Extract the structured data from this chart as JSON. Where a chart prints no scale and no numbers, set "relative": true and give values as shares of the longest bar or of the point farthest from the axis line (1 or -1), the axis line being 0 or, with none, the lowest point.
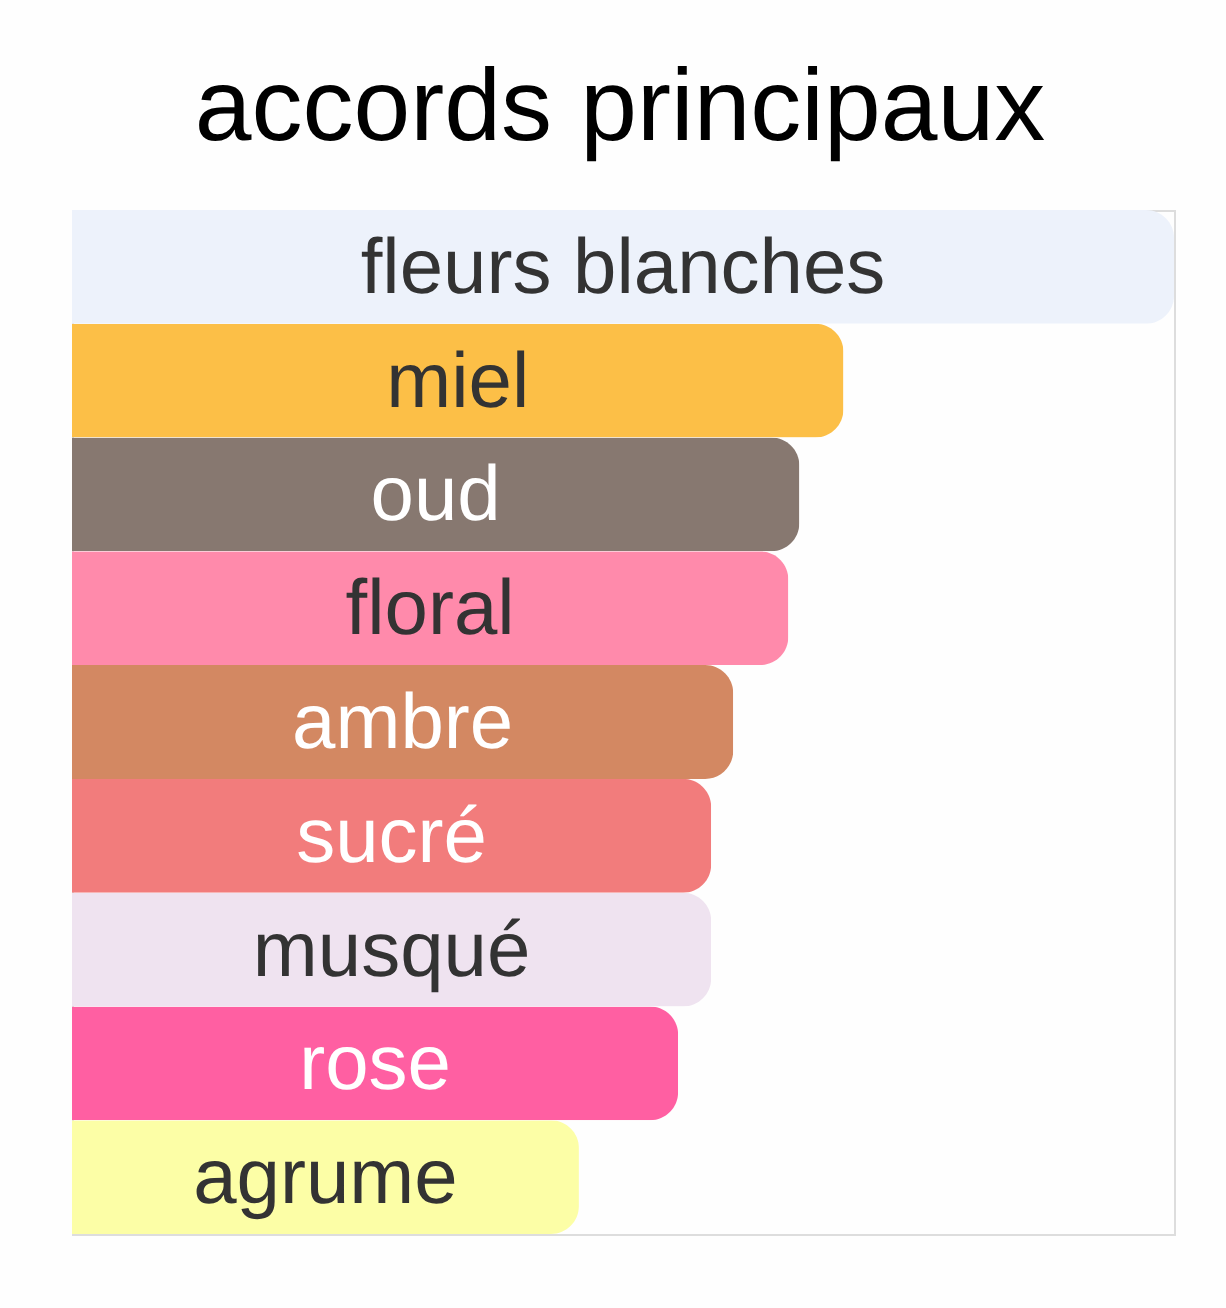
{
  "chart_data": {
    "type": "bar",
    "orientation": "horizontal",
    "relative": true,
    "title": "accords principaux",
    "categories": [
      "fleurs blanches",
      "miel",
      "oud",
      "floral",
      "ambre",
      "sucré",
      "musqué",
      "rose",
      "agrume"
    ],
    "values": [
      1,
      0.7,
      0.66,
      0.65,
      0.6,
      0.58,
      0.58,
      0.55,
      0.46
    ],
    "colors": [
      "#edf2fb",
      "#fcbf47",
      "#877870",
      "#ff8aab",
      "#d38862",
      "#f27c7c",
      "#efe3f0",
      "#ff5fa2",
      "#fcfea6"
    ]
  }
}
